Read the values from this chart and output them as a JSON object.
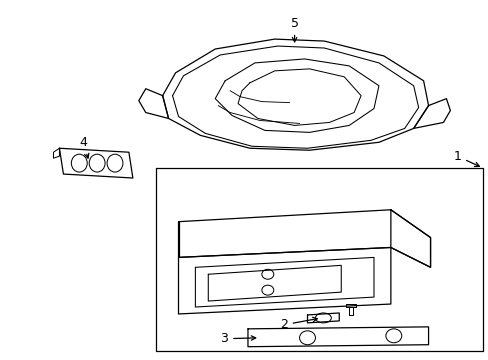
{
  "bg_color": "#ffffff",
  "line_color": "#000000",
  "lw": 0.9,
  "fig_width": 4.89,
  "fig_height": 3.6,
  "dpi": 100,
  "font_size": 9
}
